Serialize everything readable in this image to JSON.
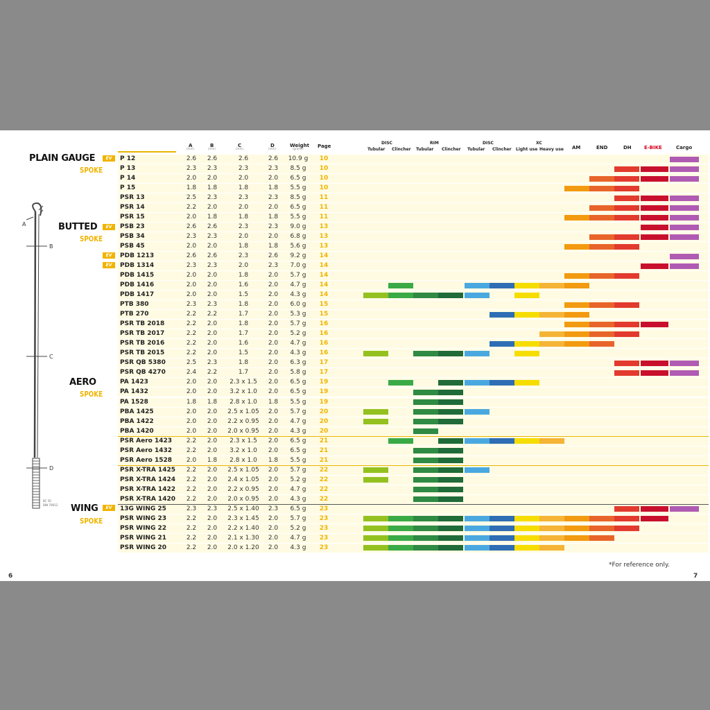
{
  "headers": {
    "a": "A",
    "b": "B",
    "c": "C",
    "d": "D",
    "weight": "Weight",
    "page": "Page",
    "unit": "(mm)",
    "weight_unit": "(grams)",
    "disc_group": "DISC",
    "rim_group": "RIM",
    "disc2_group": "DISC",
    "xc_group": "XC",
    "tubular": "Tubular",
    "clincher": "Clincher",
    "light_use": "Light use",
    "heavy_use": "Heavy use",
    "am": "AM",
    "end": "END",
    "dh": "DH",
    "ebike": "E-BIKE",
    "cargo": "Cargo"
  },
  "categories": [
    {
      "title": "PLAIN GAUGE",
      "sub": "SPOKE"
    },
    {
      "title": "BUTTED",
      "sub": "SPOKE"
    },
    {
      "title": "AERO",
      "sub": "SPOKE"
    },
    {
      "title": "WING",
      "sub": "SPOKE"
    }
  ],
  "badge": "EV",
  "diagram": {
    "a": "A",
    "b": "B",
    "c": "C",
    "d": "D",
    "note1": "BC 50",
    "note2": "DIN 79012"
  },
  "colors": {
    "c1": "#94c120",
    "c2": "#3aaa47",
    "c3": "#2f8a43",
    "c4": "#1f6b3a",
    "c5": "#4aa8e0",
    "c6": "#2f6db5",
    "c7": "#f6dd00",
    "c8": "#f5b436",
    "c9": "#f29a10",
    "c10": "#e8642a",
    "c11": "#e23a2e",
    "c12": "#c8102e",
    "c13": "#b05bb3"
  },
  "rows": [
    {
      "name": "P 12",
      "a": "2.6",
      "b": "2.6",
      "c": "2.6",
      "d": "2.6",
      "w": "10.9 g",
      "p": "10",
      "bars": [
        12,
        13
      ]
    },
    {
      "name": "P 13",
      "a": "2.3",
      "b": "2.3",
      "c": "2.3",
      "d": "2.3",
      "w": "8.5 g",
      "p": "10",
      "bars": [
        10,
        11,
        12,
        13
      ]
    },
    {
      "name": "P 14",
      "a": "2.0",
      "b": "2.0",
      "c": "2.0",
      "d": "2.0",
      "w": "6.5 g",
      "p": "10",
      "bars": [
        9,
        10,
        11,
        12,
        13
      ]
    },
    {
      "name": "P 15",
      "a": "1.8",
      "b": "1.8",
      "c": "1.8",
      "d": "1.8",
      "w": "5.5 g",
      "p": "10",
      "bars": [
        8,
        9,
        10
      ]
    },
    {
      "name": "PSR 13",
      "a": "2.5",
      "b": "2.3",
      "c": "2.3",
      "d": "2.3",
      "w": "8.5 g",
      "p": "11",
      "bars": [
        10,
        11,
        12,
        13
      ]
    },
    {
      "name": "PSR 14",
      "a": "2.2",
      "b": "2.0",
      "c": "2.0",
      "d": "2.0",
      "w": "6.5 g",
      "p": "11",
      "bars": [
        9,
        10,
        11,
        12
      ]
    },
    {
      "name": "PSR 15",
      "a": "2.0",
      "b": "1.8",
      "c": "1.8",
      "d": "1.8",
      "w": "5.5 g",
      "p": "11",
      "bars": [
        8,
        9,
        10,
        11,
        12
      ]
    },
    {
      "name": "PSB 23",
      "a": "2.6",
      "b": "2.6",
      "c": "2.3",
      "d": "2.3",
      "w": "9.0 g",
      "p": "13",
      "bars": [
        11,
        12,
        13
      ]
    },
    {
      "name": "PSB 34",
      "a": "2.3",
      "b": "2.3",
      "c": "2.0",
      "d": "2.0",
      "w": "6.8 g",
      "p": "13",
      "bars": [
        9,
        10,
        11,
        12
      ]
    },
    {
      "name": "PSB 45",
      "a": "2.0",
      "b": "2.0",
      "c": "1.8",
      "d": "1.8",
      "w": "5.6 g",
      "p": "13",
      "bars": [
        8,
        9,
        10
      ]
    },
    {
      "name": "PDB 1213",
      "a": "2.6",
      "b": "2.6",
      "c": "2.3",
      "d": "2.6",
      "w": "9.2 g",
      "p": "14",
      "bars": [
        12,
        13
      ]
    },
    {
      "name": "PDB 1314",
      "a": "2.3",
      "b": "2.3",
      "c": "2.0",
      "d": "2.3",
      "w": "7.0 g",
      "p": "14",
      "bars": [
        11,
        12,
        13
      ]
    },
    {
      "name": "PDB 1415",
      "a": "2.0",
      "b": "2.0",
      "c": "1.8",
      "d": "2.0",
      "w": "5.7 g",
      "p": "14",
      "bars": [
        8,
        9,
        10
      ]
    },
    {
      "name": "PDB 1416",
      "a": "2.0",
      "b": "2.0",
      "c": "1.6",
      "d": "2.0",
      "w": "4.7 g",
      "p": "14",
      "bars": [
        1,
        4,
        5,
        6,
        7,
        8
      ]
    },
    {
      "name": "PDB 1417",
      "a": "2.0",
      "b": "2.0",
      "c": "1.5",
      "d": "2.0",
      "w": "4.3 g",
      "p": "14",
      "bars": [
        0,
        1,
        2,
        3,
        4,
        6
      ]
    },
    {
      "name": "PTB 380",
      "a": "2.3",
      "b": "2.3",
      "c": "1.8",
      "d": "2.0",
      "w": "6.0 g",
      "p": "15",
      "bars": [
        8,
        9,
        10
      ]
    },
    {
      "name": "PTB 270",
      "a": "2.2",
      "b": "2.2",
      "c": "1.7",
      "d": "2.0",
      "w": "5.3 g",
      "p": "15",
      "bars": [
        5,
        6,
        7,
        8
      ]
    },
    {
      "name": "PSR TB 2018",
      "a": "2.2",
      "b": "2.0",
      "c": "1.8",
      "d": "2.0",
      "w": "5.7 g",
      "p": "16",
      "bars": [
        8,
        9,
        10,
        11
      ]
    },
    {
      "name": "PSR TB 2017",
      "a": "2.2",
      "b": "2.0",
      "c": "1.7",
      "d": "2.0",
      "w": "5.2 g",
      "p": "16",
      "bars": [
        7,
        8,
        9,
        10
      ]
    },
    {
      "name": "PSR TB 2016",
      "a": "2.2",
      "b": "2.0",
      "c": "1.6",
      "d": "2.0",
      "w": "4.7 g",
      "p": "16",
      "bars": [
        5,
        6,
        7,
        8,
        9
      ]
    },
    {
      "name": "PSR TB 2015",
      "a": "2.2",
      "b": "2.0",
      "c": "1.5",
      "d": "2.0",
      "w": "4.3 g",
      "p": "16",
      "bars": [
        0,
        2,
        3,
        4,
        6
      ]
    },
    {
      "name": "PSR QB 5380",
      "a": "2.5",
      "b": "2.3",
      "c": "1.8",
      "d": "2.0",
      "w": "6.3 g",
      "p": "17",
      "bars": [
        10,
        11,
        12
      ]
    },
    {
      "name": "PSR QB 4270",
      "a": "2.4",
      "b": "2.2",
      "c": "1.7",
      "d": "2.0",
      "w": "5.8 g",
      "p": "17",
      "bars": [
        10,
        11,
        12
      ]
    },
    {
      "name": "PA 1423",
      "a": "2.0",
      "b": "2.0",
      "c": "2.3 x 1.5",
      "d": "2.0",
      "w": "6.5 g",
      "p": "19",
      "bars": [
        1,
        3,
        4,
        5,
        6
      ]
    },
    {
      "name": "PA 1432",
      "a": "2.0",
      "b": "2.0",
      "c": "3.2 x 1.0",
      "d": "2.0",
      "w": "6.5 g",
      "p": "19",
      "bars": [
        2,
        3
      ]
    },
    {
      "name": "PA 1528",
      "a": "1.8",
      "b": "1.8",
      "c": "2.8 x 1.0",
      "d": "1.8",
      "w": "5.5 g",
      "p": "19",
      "bars": [
        2,
        3
      ]
    },
    {
      "name": "PBA 1425",
      "a": "2.0",
      "b": "2.0",
      "c": "2.5 x 1.05",
      "d": "2.0",
      "w": "5.7 g",
      "p": "20",
      "bars": [
        0,
        2,
        3,
        4
      ]
    },
    {
      "name": "PBA 1422",
      "a": "2.0",
      "b": "2.0",
      "c": "2.2 x 0.95",
      "d": "2.0",
      "w": "4.7 g",
      "p": "20",
      "bars": [
        0,
        2,
        3
      ]
    },
    {
      "name": "PBA 1420",
      "a": "2.0",
      "b": "2.0",
      "c": "2.0 x 0.95",
      "d": "2.0",
      "w": "4.3 g",
      "p": "20",
      "bars": [
        2
      ]
    },
    {
      "name": "PSR Aero 1423",
      "a": "2.2",
      "b": "2.0",
      "c": "2.3 x 1.5",
      "d": "2.0",
      "w": "6.5 g",
      "p": "21",
      "bars": [
        1,
        3,
        4,
        5,
        6,
        7
      ]
    },
    {
      "name": "PSR Aero 1432",
      "a": "2.2",
      "b": "2.0",
      "c": "3.2 x 1.0",
      "d": "2.0",
      "w": "6.5 g",
      "p": "21",
      "bars": [
        2,
        3
      ]
    },
    {
      "name": "PSR Aero 1528",
      "a": "2.0",
      "b": "1.8",
      "c": "2.8 x 1.0",
      "d": "1.8",
      "w": "5.5 g",
      "p": "21",
      "bars": [
        2,
        3
      ]
    },
    {
      "name": "PSR X-TRA 1425",
      "a": "2.2",
      "b": "2.0",
      "c": "2.5 x 1.05",
      "d": "2.0",
      "w": "5.7 g",
      "p": "22",
      "bars": [
        0,
        2,
        3,
        4
      ]
    },
    {
      "name": "PSR X-TRA 1424",
      "a": "2.2",
      "b": "2.0",
      "c": "2.4 x 1.05",
      "d": "2.0",
      "w": "5.2 g",
      "p": "22",
      "bars": [
        0,
        2,
        3
      ]
    },
    {
      "name": "PSR X-TRA 1422",
      "a": "2.2",
      "b": "2.0",
      "c": "2.2 x 0.95",
      "d": "2.0",
      "w": "4.7 g",
      "p": "22",
      "bars": [
        2,
        3
      ]
    },
    {
      "name": "PSR X-TRA 1420",
      "a": "2.2",
      "b": "2.0",
      "c": "2.0 x 0.95",
      "d": "2.0",
      "w": "4.3 g",
      "p": "22",
      "bars": [
        2,
        3
      ]
    },
    {
      "name": "13G WING 25",
      "a": "2.3",
      "b": "2.3",
      "c": "2.5 x 1.40",
      "d": "2.3",
      "w": "6.5 g",
      "p": "23",
      "bars": [
        10,
        11,
        12
      ]
    },
    {
      "name": "PSR WING 23",
      "a": "2.2",
      "b": "2.0",
      "c": "2.3 x 1.45",
      "d": "2.0",
      "w": "5.7 g",
      "p": "23",
      "bars": [
        0,
        1,
        2,
        3,
        4,
        5,
        6,
        7,
        8,
        9,
        10,
        11
      ]
    },
    {
      "name": "PSR WING 22",
      "a": "2.2",
      "b": "2.0",
      "c": "2.2 x 1.40",
      "d": "2.0",
      "w": "5.2 g",
      "p": "23",
      "bars": [
        0,
        1,
        2,
        3,
        4,
        5,
        6,
        7,
        8,
        9,
        10
      ]
    },
    {
      "name": "PSR WING 21",
      "a": "2.2",
      "b": "2.0",
      "c": "2.1 x 1.30",
      "d": "2.0",
      "w": "4.7 g",
      "p": "23",
      "bars": [
        0,
        1,
        2,
        3,
        4,
        5,
        6,
        7,
        8,
        9
      ]
    },
    {
      "name": "PSR WING 20",
      "a": "2.2",
      "b": "2.0",
      "c": "2.0 x 1.20",
      "d": "2.0",
      "w": "4.3 g",
      "p": "23",
      "bars": [
        0,
        1,
        2,
        3,
        4,
        5,
        6,
        7
      ]
    }
  ],
  "footer": {
    "note": "*For reference only.",
    "page_left": "6",
    "page_right": "7"
  }
}
